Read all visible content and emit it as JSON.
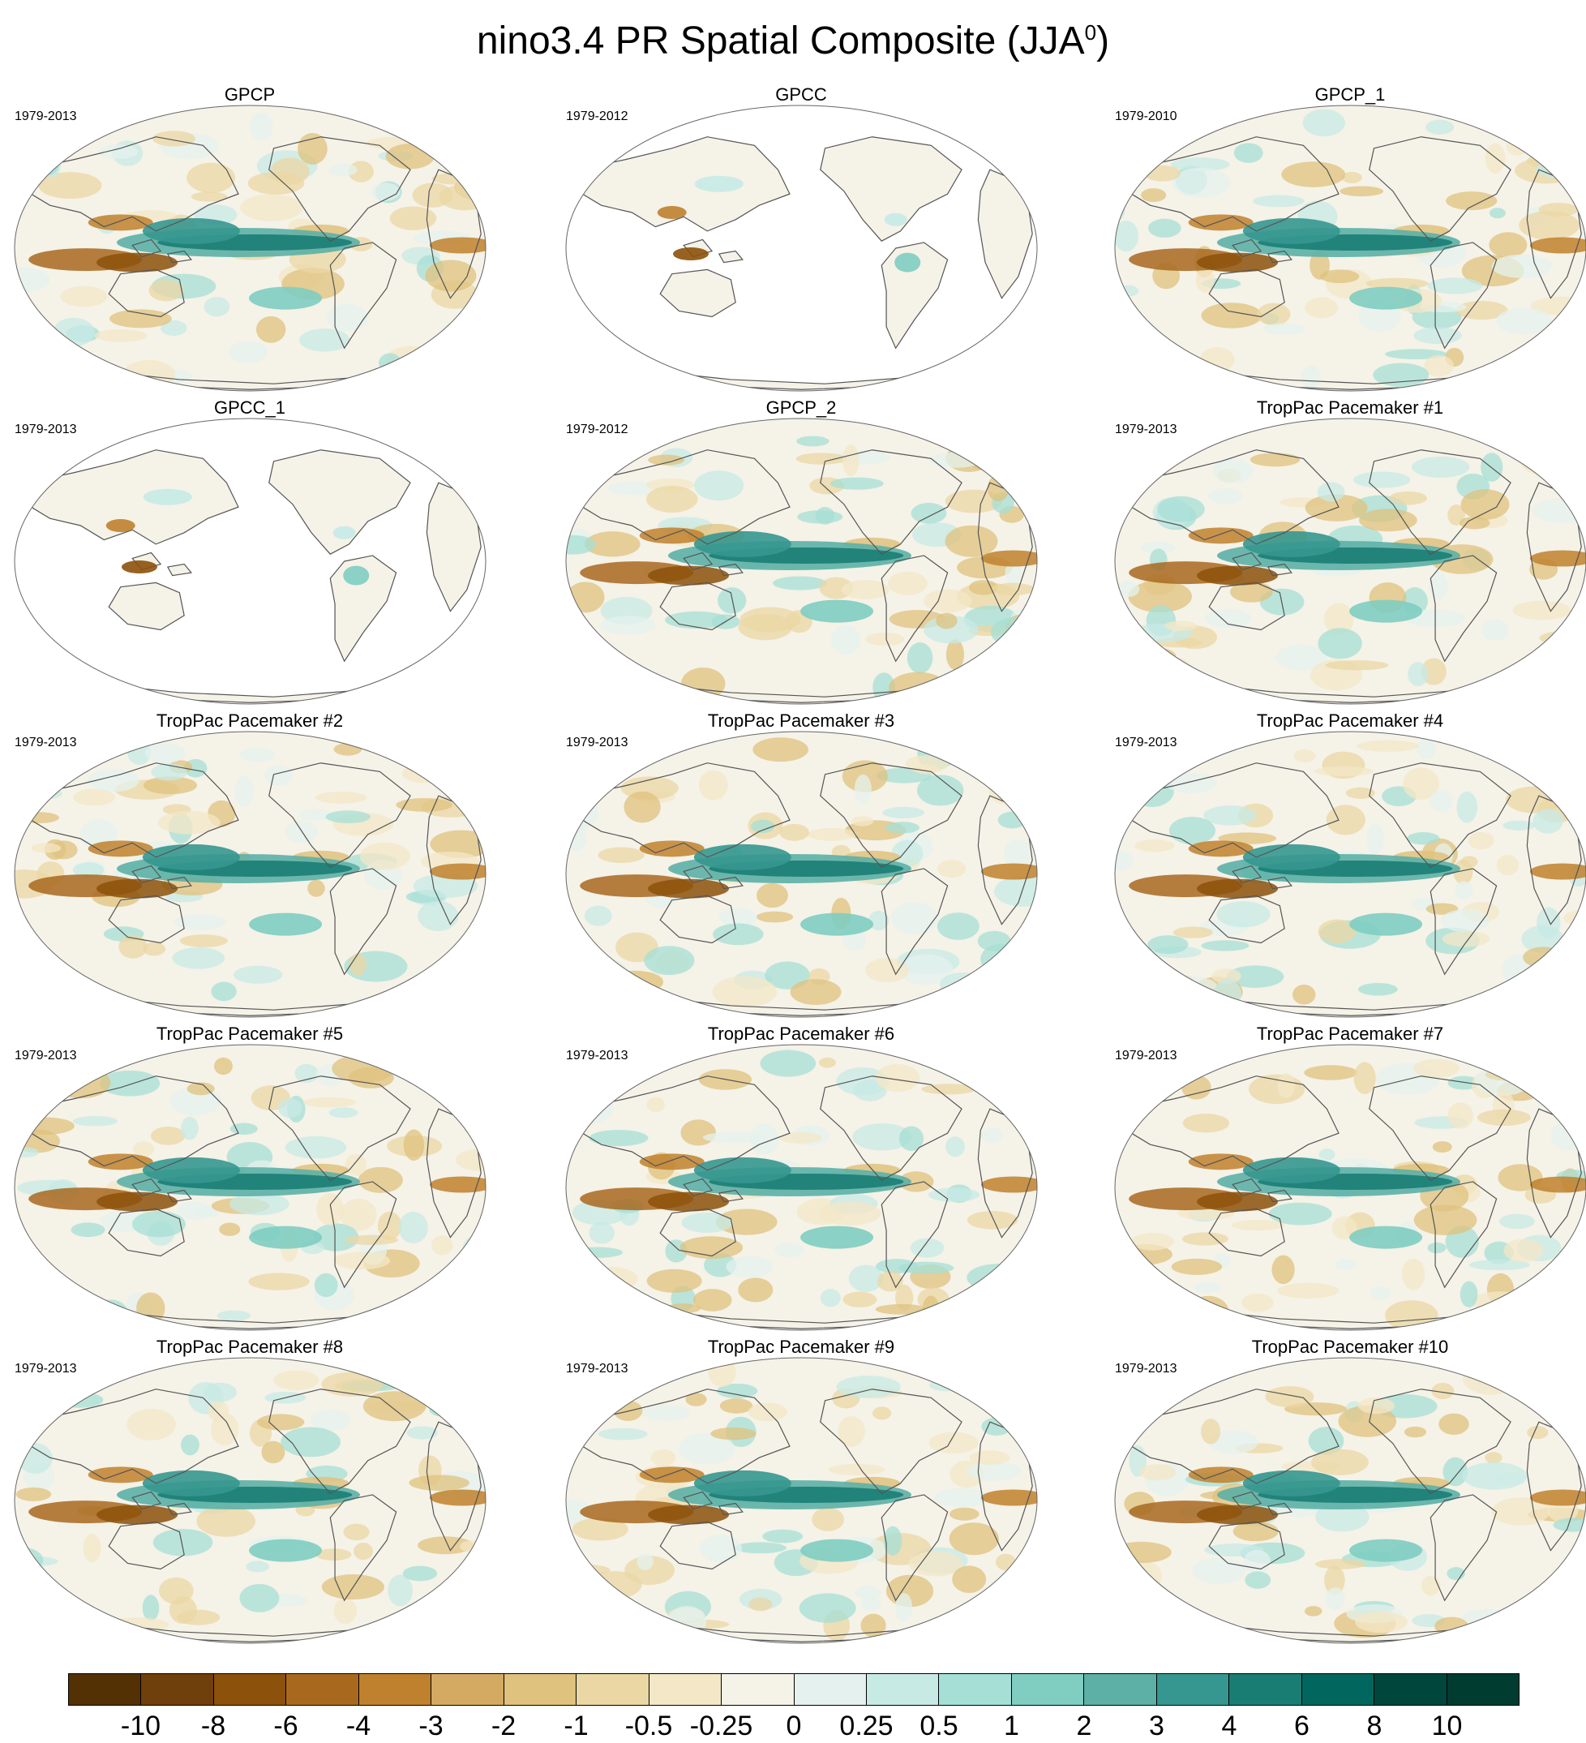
{
  "title": "nino3.4 PR Spatial Composite (JJA",
  "title_superscript": "0",
  "title_close": ")",
  "panels": [
    {
      "title": "GPCP",
      "years": "1979-2013",
      "ocean_data": true
    },
    {
      "title": "GPCC",
      "years": "1979-2012",
      "ocean_data": false
    },
    {
      "title": "GPCP_1",
      "years": "1979-2010",
      "ocean_data": true
    },
    {
      "title": "GPCC_1",
      "years": "1979-2013",
      "ocean_data": false
    },
    {
      "title": "GPCP_2",
      "years": "1979-2012",
      "ocean_data": true
    },
    {
      "title": "TropPac Pacemaker #1",
      "years": "1979-2013",
      "ocean_data": true
    },
    {
      "title": "TropPac Pacemaker #2",
      "years": "1979-2013",
      "ocean_data": true
    },
    {
      "title": "TropPac Pacemaker #3",
      "years": "1979-2013",
      "ocean_data": true
    },
    {
      "title": "TropPac Pacemaker #4",
      "years": "1979-2013",
      "ocean_data": true
    },
    {
      "title": "TropPac Pacemaker #5",
      "years": "1979-2013",
      "ocean_data": true
    },
    {
      "title": "TropPac Pacemaker #6",
      "years": "1979-2013",
      "ocean_data": true
    },
    {
      "title": "TropPac Pacemaker #7",
      "years": "1979-2013",
      "ocean_data": true
    },
    {
      "title": "TropPac Pacemaker #8",
      "years": "1979-2013",
      "ocean_data": true
    },
    {
      "title": "TropPac Pacemaker #9",
      "years": "1979-2013",
      "ocean_data": true
    },
    {
      "title": "TropPac Pacemaker #10",
      "years": "1979-2013",
      "ocean_data": true
    }
  ],
  "colorbar": {
    "colors": [
      "#543005",
      "#6f3f0c",
      "#8c510a",
      "#a8691e",
      "#bf812d",
      "#d4aa62",
      "#dfc27d",
      "#ebd7a4",
      "#f3e7c7",
      "#f5f2e8",
      "#e4f1ee",
      "#c7eae5",
      "#a6dfd6",
      "#80cdc1",
      "#5cb0a6",
      "#35978f",
      "#1a7d74",
      "#01665e",
      "#01463c",
      "#003c30"
    ],
    "labels": [
      "-10",
      "-8",
      "-6",
      "-4",
      "-3",
      "-2",
      "-1",
      "-0.5",
      "-0.25",
      "0",
      "0.25",
      "0.5",
      "1",
      "2",
      "3",
      "4",
      "6",
      "8",
      "10"
    ]
  }
}
